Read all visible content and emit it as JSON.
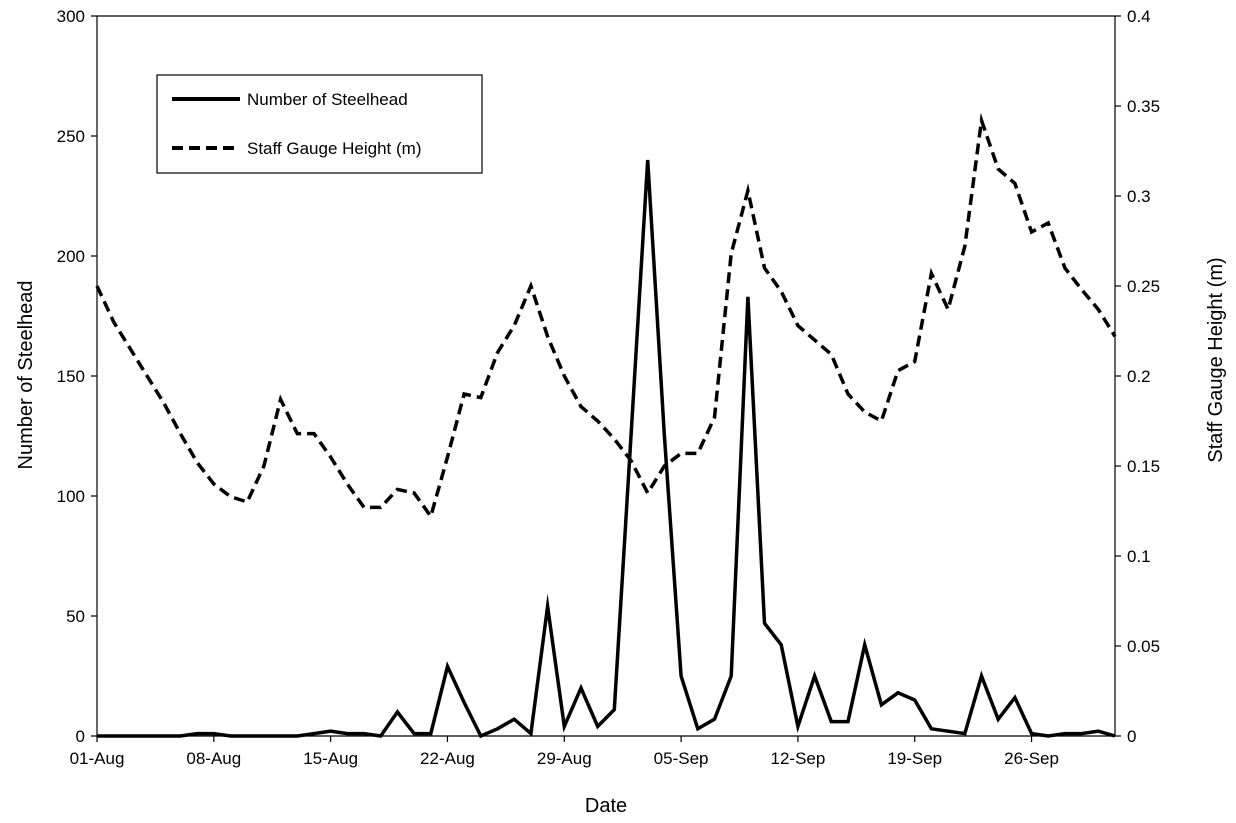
{
  "chart_data": {
    "type": "line",
    "title": "",
    "xlabel": "Date",
    "ylabel": "Number of Steelhead",
    "y2label": "Staff Gauge Height (m)",
    "x_ticks": [
      "01-Aug",
      "08-Aug",
      "15-Aug",
      "22-Aug",
      "29-Aug",
      "05-Sep",
      "12-Sep",
      "19-Sep",
      "26-Sep"
    ],
    "y_ticks": [
      "0",
      "50",
      "100",
      "150",
      "200",
      "250",
      "300"
    ],
    "y2_ticks": [
      "0",
      "0.05",
      "0.1",
      "0.15",
      "0.2",
      "0.25",
      "0.3",
      "0.35",
      "0.4"
    ],
    "ylim": [
      0,
      300
    ],
    "y2lim": [
      0,
      0.4
    ],
    "xlim": [
      "01-Aug",
      "01-Oct"
    ],
    "grid": false,
    "legend_position": "top-left",
    "series": [
      {
        "name": "Number of Steelhead",
        "axis": "left",
        "style": "solid",
        "color": "#000000",
        "x": [
          "01-Aug",
          "02-Aug",
          "03-Aug",
          "04-Aug",
          "05-Aug",
          "06-Aug",
          "07-Aug",
          "08-Aug",
          "09-Aug",
          "10-Aug",
          "11-Aug",
          "12-Aug",
          "13-Aug",
          "14-Aug",
          "15-Aug",
          "16-Aug",
          "17-Aug",
          "18-Aug",
          "19-Aug",
          "20-Aug",
          "21-Aug",
          "22-Aug",
          "23-Aug",
          "24-Aug",
          "25-Aug",
          "26-Aug",
          "27-Aug",
          "28-Aug",
          "29-Aug",
          "30-Aug",
          "31-Aug",
          "01-Sep",
          "02-Sep",
          "03-Sep",
          "04-Sep",
          "05-Sep",
          "06-Sep",
          "07-Sep",
          "08-Sep",
          "09-Sep",
          "10-Sep",
          "11-Sep",
          "12-Sep",
          "13-Sep",
          "14-Sep",
          "15-Sep",
          "16-Sep",
          "17-Sep",
          "18-Sep",
          "19-Sep",
          "20-Sep",
          "21-Sep",
          "22-Sep",
          "23-Sep",
          "24-Sep",
          "25-Sep",
          "26-Sep",
          "27-Sep",
          "28-Sep",
          "29-Sep",
          "30-Sep",
          "01-Oct"
        ],
        "values": [
          0,
          0,
          0,
          0,
          0,
          0,
          1,
          1,
          0,
          0,
          0,
          0,
          0,
          1,
          2,
          1,
          1,
          0,
          10,
          1,
          1,
          29,
          14,
          0,
          3,
          7,
          1,
          54,
          4,
          20,
          4,
          11,
          125,
          240,
          125,
          25,
          3,
          7,
          25,
          183,
          47,
          38,
          4,
          25,
          6,
          6,
          38,
          13,
          18,
          15,
          3,
          2,
          1,
          25,
          7,
          16,
          1,
          0,
          1,
          1,
          2,
          0
        ]
      },
      {
        "name": "Staff Gauge Height (m)",
        "axis": "right",
        "style": "dashed",
        "color": "#000000",
        "x": [
          "01-Aug",
          "02-Aug",
          "03-Aug",
          "04-Aug",
          "05-Aug",
          "06-Aug",
          "07-Aug",
          "08-Aug",
          "09-Aug",
          "10-Aug",
          "11-Aug",
          "12-Aug",
          "13-Aug",
          "14-Aug",
          "15-Aug",
          "16-Aug",
          "17-Aug",
          "18-Aug",
          "19-Aug",
          "20-Aug",
          "21-Aug",
          "22-Aug",
          "23-Aug",
          "24-Aug",
          "25-Aug",
          "26-Aug",
          "27-Aug",
          "28-Aug",
          "29-Aug",
          "30-Aug",
          "31-Aug",
          "01-Sep",
          "02-Sep",
          "03-Sep",
          "04-Sep",
          "05-Sep",
          "06-Sep",
          "07-Sep",
          "08-Sep",
          "09-Sep",
          "10-Sep",
          "11-Sep",
          "12-Sep",
          "13-Sep",
          "14-Sep",
          "15-Sep",
          "16-Sep",
          "17-Sep",
          "18-Sep",
          "19-Sep",
          "20-Sep",
          "21-Sep",
          "22-Sep",
          "23-Sep",
          "24-Sep",
          "25-Sep",
          "26-Sep",
          "27-Sep",
          "28-Sep",
          "29-Sep",
          "30-Sep",
          "01-Oct"
        ],
        "values": [
          0.25,
          0.23,
          0.215,
          0.2,
          0.185,
          0.168,
          0.152,
          0.14,
          0.133,
          0.13,
          0.15,
          0.187,
          0.168,
          0.168,
          0.155,
          0.14,
          0.127,
          0.127,
          0.137,
          0.135,
          0.122,
          0.155,
          0.19,
          0.188,
          0.213,
          0.228,
          0.25,
          0.222,
          0.2,
          0.183,
          0.175,
          0.165,
          0.153,
          0.135,
          0.15,
          0.157,
          0.157,
          0.177,
          0.268,
          0.303,
          0.26,
          0.247,
          0.228,
          0.22,
          0.212,
          0.19,
          0.18,
          0.175,
          0.203,
          0.208,
          0.257,
          0.237,
          0.272,
          0.342,
          0.315,
          0.307,
          0.28,
          0.285,
          0.26,
          0.248,
          0.237,
          0.222
        ]
      }
    ]
  }
}
